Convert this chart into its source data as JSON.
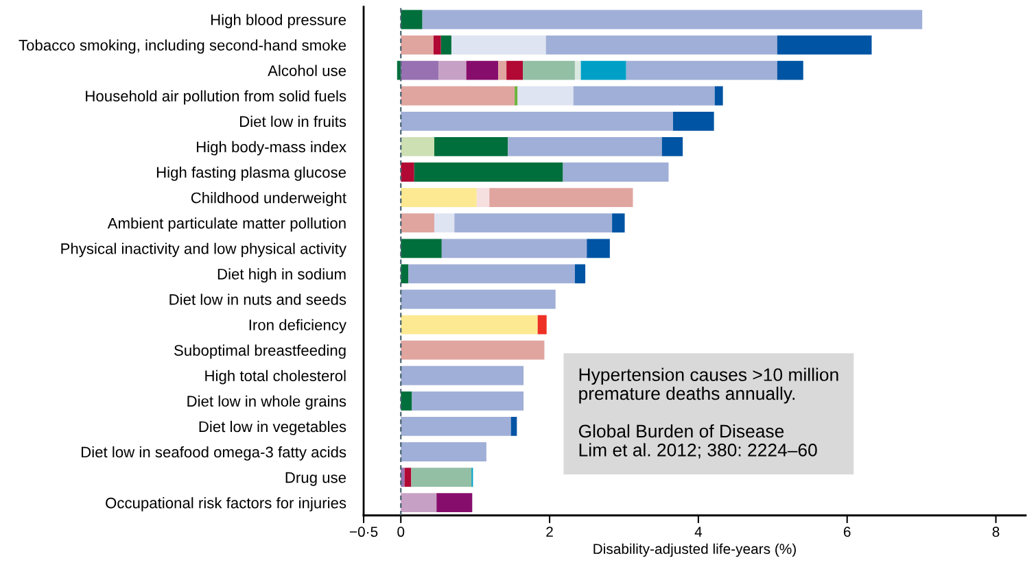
{
  "chart_data": {
    "type": "bar",
    "orientation": "horizontal",
    "stacked": true,
    "xlabel": "Disability-adjusted life-years (%)",
    "categories": [
      "High blood pressure",
      "Tobacco smoking, including second-hand smoke",
      "Alcohol use",
      "Household air pollution from solid fuels",
      "Diet low in fruits",
      "High body-mass index",
      "High fasting plasma glucose",
      "Childhood underweight",
      "Ambient particulate matter pollution",
      "Physical inactivity and low physical activity",
      "Diet high in sodium",
      "Diet low in nuts and seeds",
      "Iron deficiency",
      "Suboptimal breastfeeding",
      "High total cholesterol",
      "Diet low in whole grains",
      "Diet low in vegetables",
      "Diet low in seafood omega-3 fatty acids",
      "Drug use",
      "Occupational risk factors for injuries"
    ],
    "series": [
      {
        "color": "#fde992",
        "values": [
          null,
          null,
          null,
          null,
          null,
          null,
          null,
          1.02,
          null,
          null,
          null,
          null,
          1.84,
          null,
          null,
          null,
          null,
          null,
          null,
          null
        ]
      },
      {
        "color": "#f6dfdf",
        "values": [
          null,
          null,
          null,
          null,
          null,
          null,
          null,
          0.17,
          null,
          null,
          null,
          null,
          null,
          null,
          null,
          null,
          null,
          null,
          null,
          null
        ]
      },
      {
        "color": "#ee3124",
        "values": [
          null,
          null,
          null,
          null,
          null,
          null,
          null,
          null,
          null,
          null,
          null,
          null,
          0.12,
          null,
          null,
          null,
          null,
          null,
          null,
          null
        ]
      },
      {
        "color": "#cde0b4",
        "values": [
          null,
          null,
          null,
          null,
          null,
          0.45,
          null,
          null,
          null,
          null,
          null,
          null,
          null,
          null,
          null,
          null,
          null,
          null,
          null,
          null
        ]
      },
      {
        "color": "#9771b1",
        "values": [
          null,
          null,
          0.51,
          null,
          null,
          null,
          null,
          null,
          null,
          null,
          null,
          null,
          null,
          null,
          null,
          null,
          null,
          null,
          0.05,
          null
        ]
      },
      {
        "color": "#c7a0c5",
        "values": [
          null,
          null,
          0.37,
          null,
          null,
          null,
          null,
          null,
          null,
          null,
          null,
          null,
          null,
          null,
          null,
          null,
          null,
          null,
          null,
          0.48
        ]
      },
      {
        "color": "#870d6c",
        "values": [
          null,
          null,
          0.43,
          null,
          null,
          null,
          null,
          null,
          null,
          null,
          null,
          null,
          null,
          null,
          null,
          null,
          null,
          null,
          null,
          0.48
        ]
      },
      {
        "color": "#e0a59f",
        "values": [
          null,
          0.44,
          0.11,
          1.53,
          null,
          null,
          null,
          1.93,
          0.45,
          null,
          null,
          null,
          null,
          1.93,
          null,
          null,
          null,
          null,
          null,
          null
        ]
      },
      {
        "color": "#6db33f",
        "values": [
          null,
          null,
          null,
          0.04,
          null,
          null,
          null,
          null,
          null,
          null,
          null,
          null,
          null,
          null,
          null,
          null,
          null,
          null,
          null,
          null
        ]
      },
      {
        "color": "#b10834",
        "values": [
          null,
          0.1,
          0.22,
          null,
          null,
          null,
          0.18,
          null,
          null,
          null,
          null,
          null,
          null,
          null,
          null,
          null,
          null,
          null,
          0.09,
          null
        ]
      },
      {
        "color": "#006f3c",
        "values": [
          0.29,
          0.14,
          -0.05,
          null,
          null,
          0.99,
          2.0,
          null,
          null,
          0.55,
          0.1,
          null,
          null,
          null,
          null,
          0.15,
          null,
          null,
          null,
          null
        ]
      },
      {
        "color": "#93bfa5",
        "values": [
          null,
          null,
          0.7,
          null,
          null,
          null,
          null,
          null,
          null,
          null,
          null,
          null,
          null,
          null,
          null,
          null,
          null,
          null,
          0.81,
          null
        ]
      },
      {
        "color": "#dce9e2",
        "values": [
          null,
          null,
          0.08,
          null,
          null,
          null,
          null,
          null,
          null,
          null,
          null,
          null,
          null,
          null,
          null,
          null,
          null,
          null,
          null,
          null
        ]
      },
      {
        "color": "#00a0c6",
        "values": [
          null,
          null,
          0.61,
          null,
          null,
          null,
          null,
          null,
          null,
          null,
          null,
          null,
          null,
          null,
          null,
          null,
          null,
          null,
          0.02,
          null
        ]
      },
      {
        "color": "#dfe4f2",
        "values": [
          null,
          1.27,
          null,
          0.75,
          null,
          null,
          null,
          null,
          0.27,
          null,
          null,
          null,
          null,
          null,
          null,
          null,
          null,
          null,
          null,
          null
        ]
      },
      {
        "color": "#a0afd7",
        "values": [
          6.72,
          3.11,
          2.03,
          1.9,
          3.66,
          2.07,
          1.42,
          null,
          2.12,
          1.95,
          2.24,
          2.08,
          null,
          null,
          1.65,
          1.5,
          1.48,
          1.15,
          null,
          null
        ]
      },
      {
        "color": "#0054a4",
        "values": [
          null,
          1.27,
          0.35,
          0.11,
          0.55,
          0.28,
          null,
          null,
          0.17,
          0.31,
          0.14,
          null,
          null,
          null,
          null,
          null,
          0.08,
          null,
          null,
          null
        ]
      }
    ],
    "xlim": [
      -0.5,
      8.4
    ],
    "xticks": [
      {
        "value": -0.5,
        "label": "−0·5"
      },
      0,
      2,
      4,
      6,
      8
    ],
    "ref_lines": [
      {
        "axis": "x",
        "value": 0,
        "color": "#4a6470",
        "line_style": "dashed"
      }
    ],
    "annotations": [
      "Hypertension causes >10 million\npremature deaths annually.\n\nGlobal Burden of Disease\nLim et al. 2012; 380: 2224–60"
    ],
    "grid": false,
    "legend": false
  }
}
